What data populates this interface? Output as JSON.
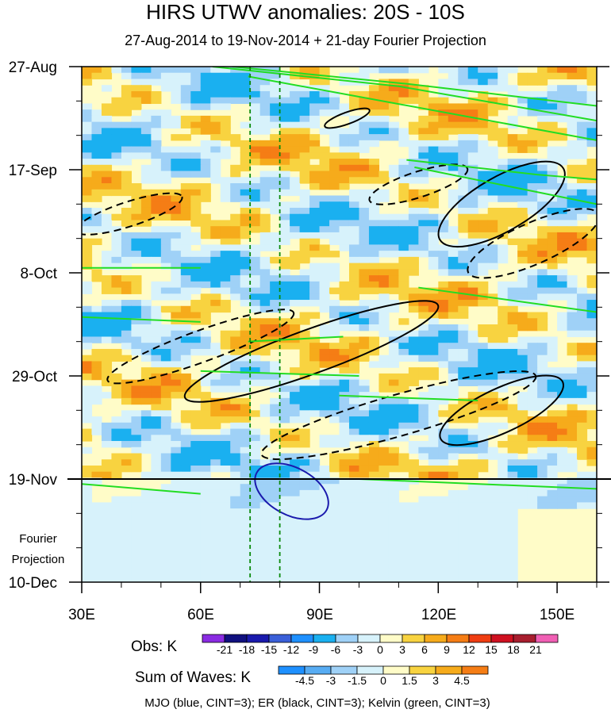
{
  "chart_data": {
    "type": "heatmap",
    "title": "HIRS UTWV anomalies: 20S - 10S",
    "subtitle": "27-Aug-2014 to 19-Nov-2014 + 21-day Fourier Projection",
    "x_ticks": [
      "30E",
      "60E",
      "90E",
      "120E",
      "150E"
    ],
    "x_tick_values": [
      30,
      60,
      90,
      120,
      150
    ],
    "xlim": [
      30,
      160
    ],
    "y_ticks": [
      "27-Aug",
      "17-Sep",
      "8-Oct",
      "29-Oct",
      "19-Nov",
      "10-Dec"
    ],
    "y_tick_day": [
      0,
      21,
      42,
      63,
      84,
      105
    ],
    "ylim_days": [
      0,
      105
    ],
    "observation_end_label": "19-Nov",
    "projection_label": [
      "Fourier",
      "Projection"
    ],
    "reference_lines_longitude": [
      72.5,
      80
    ],
    "obs_colorbar": {
      "label": "Obs: K",
      "levels": [
        "-21",
        "-18",
        "-15",
        "-12",
        "-9",
        "-6",
        "-3",
        "0",
        "3",
        "6",
        "9",
        "12",
        "15",
        "18",
        "21"
      ],
      "colors": [
        "#8a2be2",
        "#10107f",
        "#1a1aad",
        "#3a5fd8",
        "#1e90ff",
        "#1ab0f0",
        "#9fd1f7",
        "#d7f2fb",
        "#fffcc8",
        "#f8d340",
        "#f6ab1b",
        "#f57d15",
        "#ef3d12",
        "#cf1020",
        "#a81e2e",
        "#f05fb4"
      ]
    },
    "waves_colorbar": {
      "label": "Sum of Waves: K",
      "levels": [
        "-4.5",
        "-3",
        "-1.5",
        "0",
        "1.5",
        "3",
        "4.5"
      ],
      "colors": [
        "#1e90ff",
        "#57acf3",
        "#9fd1f7",
        "#d7f2fb",
        "#fffcc8",
        "#f8d340",
        "#f6ab1b",
        "#f57d15"
      ]
    },
    "footer": "MJO (blue, CINT=3); ER (black, CINT=3); Kelvin (green, CINT=3)"
  }
}
